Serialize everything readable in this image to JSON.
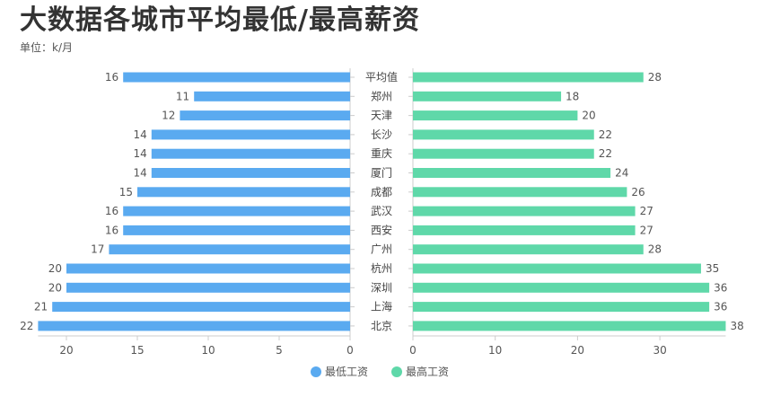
{
  "chart_data": {
    "type": "bar",
    "orientation": "horizontal-butterfly",
    "title": "大数据各城市平均最低/最高薪资",
    "subtitle": "单位：k/月",
    "categories": [
      "平均值",
      "郑州",
      "天津",
      "长沙",
      "重庆",
      "厦门",
      "成都",
      "武汉",
      "西安",
      "广州",
      "杭州",
      "深圳",
      "上海",
      "北京"
    ],
    "series": [
      {
        "name": "最低工资",
        "color": "#5aaaf0",
        "values": [
          16,
          11,
          12,
          14,
          14,
          14,
          15,
          16,
          16,
          17,
          20,
          20,
          21,
          22
        ],
        "xlim": [
          22,
          0
        ],
        "ticks": [
          20,
          15,
          10,
          5,
          0
        ]
      },
      {
        "name": "最高工资",
        "color": "#5fd8a9",
        "values": [
          28,
          18,
          20,
          22,
          22,
          24,
          26,
          27,
          27,
          28,
          35,
          36,
          36,
          38
        ],
        "xlim": [
          0,
          38
        ],
        "ticks": [
          0,
          10,
          20,
          30
        ]
      }
    ],
    "legend": "bottom-center",
    "grid": false
  }
}
